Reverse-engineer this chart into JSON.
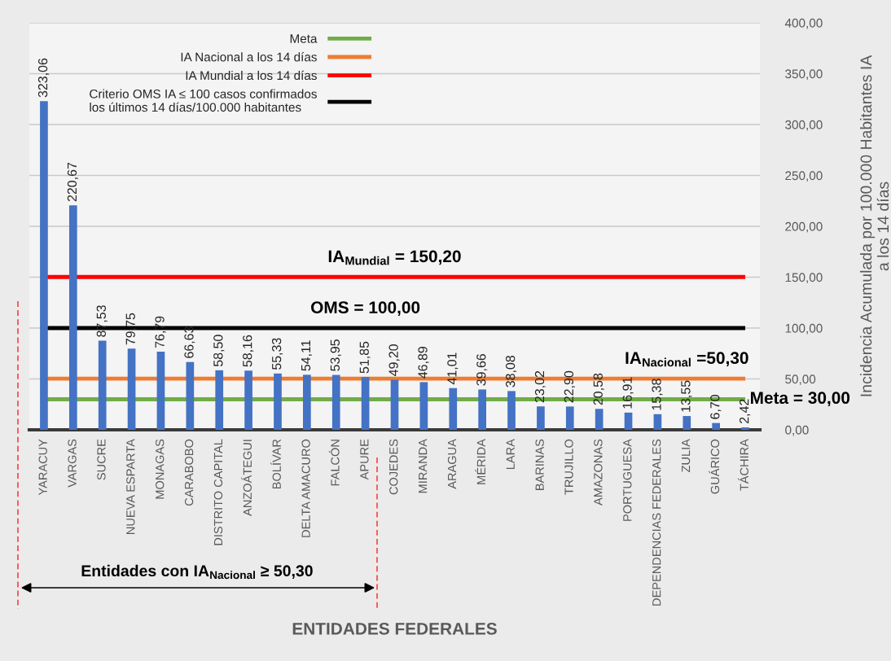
{
  "chart_data": {
    "type": "bar",
    "categories": [
      "YARACUY",
      "VARGAS",
      "SUCRE",
      "NUEVA ESPARTA",
      "MONAGAS",
      "CARABOBO",
      "DISTRITO CAPITAL",
      "ANZOÁTEGUI",
      "BOLÍVAR",
      "DELTA AMACURO",
      "FALCÓN",
      "APURE",
      "COJEDES",
      "MIRANDA",
      "ARAGUA",
      "MÉRIDA",
      "LARA",
      "BARINAS",
      "TRUJILLO",
      "AMAZONAS",
      "PORTUGUESA",
      "DEPENDENCIAS FEDERALES",
      "ZULIA",
      "GUÁRICO",
      "TÁCHIRA"
    ],
    "series": [
      {
        "color": "#4472c4",
        "values": [
          323.06,
          220.67,
          87.53,
          79.75,
          76.79,
          66.63,
          58.5,
          58.16,
          55.33,
          54.11,
          53.95,
          51.85,
          49.2,
          46.89,
          41.01,
          39.66,
          38.08,
          23.02,
          22.9,
          20.58,
          16.91,
          15.38,
          13.55,
          6.7,
          2.42
        ],
        "value_labels": [
          "323,06",
          "220,67",
          "87,53",
          "79,75",
          "76,79",
          "66,63",
          "58,50",
          "58,16",
          "55,33",
          "54,11",
          "53,95",
          "51,85",
          "49,20",
          "46,89",
          "41,01",
          "39,66",
          "38,08",
          "23,02",
          "22,90",
          "20,58",
          "16,91",
          "15,38",
          "13,55",
          "6,70",
          "2,42"
        ]
      }
    ],
    "ref_lines": [
      {
        "axis": "y",
        "value": 30,
        "label": "Meta",
        "color": "#70ad47"
      },
      {
        "axis": "y",
        "value": 50.3,
        "label": "IA Nacional a los 14 días",
        "color": "#ed7d31"
      },
      {
        "axis": "y",
        "value": 150.2,
        "label": "IA Mundial a los 14 días",
        "color": "#ff0000"
      },
      {
        "axis": "y",
        "value": 100,
        "label": "Criterio OMS IA ≤ 100 casos confirmados\nlos últimos 14 días/100.000 habitantes",
        "color": "#000000"
      }
    ],
    "xlabel": "ENTIDADES FEDERALES",
    "ylabel": "Incidencia Acumulada por 100.000 Habitantes IA\na los 14 días",
    "ylim": [
      0,
      400
    ],
    "yticks": [
      {
        "value": 0,
        "label": "0,00"
      },
      {
        "value": 50,
        "label": "50,00"
      },
      {
        "value": 100,
        "label": "100,00"
      },
      {
        "value": 150,
        "label": "150,00"
      },
      {
        "value": 200,
        "label": "200,00"
      },
      {
        "value": 250,
        "label": "250,00"
      },
      {
        "value": 300,
        "label": "300,00"
      },
      {
        "value": 350,
        "label": "350,00"
      },
      {
        "value": 400,
        "label": "400,00"
      }
    ],
    "grid": "y",
    "legend": "top left",
    "annotations": [
      {
        "text": "IA$_{Mundial}$ = 150,20",
        "x": "COJEDES",
        "y": 150.2
      },
      {
        "text": "OMS = 100,00",
        "x": "APURE",
        "y": 100
      },
      {
        "text": "IA$_{Nacional}$ =50,30",
        "x": "ZULIA",
        "y": 50.3
      },
      {
        "text": "Meta = 30,00",
        "x": "TÁCHIRA",
        "y": 30
      },
      "Entidades con IA$_{Nacional}$ ≥ 50,30"
    ]
  }
}
